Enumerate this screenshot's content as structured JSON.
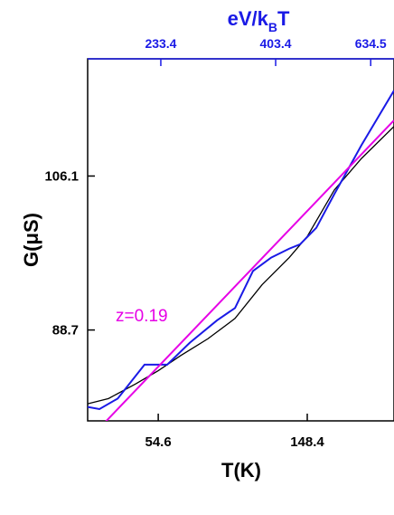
{
  "chart_data": {
    "type": "line",
    "xlabel": "T(K)",
    "ylabel": "G(μS)",
    "x2label": [
      "eV/k",
      "B",
      "T"
    ],
    "annotation": {
      "text": "z=0.19",
      "color": "#e600e6"
    },
    "xscale": "log",
    "yscale": "log",
    "x2scale": "log",
    "xlim": [
      34.0,
      265.6
    ],
    "ylim": [
      79.8,
      121.6
    ],
    "x2lim": [
      164.7,
      709
    ],
    "xticks": [
      54.6,
      148.4
    ],
    "yticks": [
      88.7,
      106.1
    ],
    "x2ticks": [
      233.4,
      403.4,
      634.5
    ],
    "x2color": "#1a1ae6",
    "series": [
      {
        "color": "#000000",
        "x": [
          34.0,
          39.1,
          46.9,
          54.6,
          63.5,
          76.2,
          91.4,
          109.6,
          131.5,
          148.4,
          178.0,
          213.6,
          265.6
        ],
        "values": [
          81.4,
          81.9,
          83.3,
          84.6,
          86.1,
          87.8,
          89.9,
          93.5,
          96.5,
          98.9,
          104.4,
          108.3,
          112.4
        ]
      },
      {
        "color": "#1a1ae6",
        "x": [
          34.0,
          36.8,
          41.6,
          49.8,
          58.0,
          67.5,
          81.0,
          91.4,
          103.1,
          116.5,
          131.5,
          141.4,
          157.7,
          178.0,
          213.6,
          265.6
        ],
        "values": [
          81.1,
          80.9,
          81.9,
          85.2,
          85.2,
          87.4,
          89.7,
          91.0,
          95.0,
          96.5,
          97.5,
          98.0,
          99.9,
          103.9,
          110.0,
          117.2
        ]
      },
      {
        "color": "#e600e6",
        "x": [
          37.5,
          265.6
        ],
        "values": [
          79.4,
          113.2
        ]
      }
    ]
  }
}
